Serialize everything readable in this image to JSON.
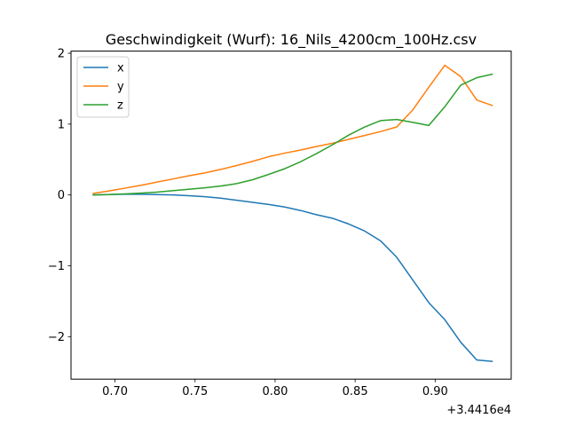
{
  "chart_data": {
    "type": "line",
    "title": "Geschwindigkeit (Wurf): 16_Nils_4200cm_100Hz.csv",
    "xlabel": "",
    "ylabel": "",
    "x_offset_label": "+3.4416e4",
    "xlim": [
      0.6725,
      0.9475
    ],
    "ylim": [
      -2.6,
      2.03
    ],
    "grid": false,
    "legend_position": "top-left",
    "x_ticks": [
      0.7,
      0.75,
      0.8,
      0.85,
      0.9
    ],
    "x_tick_labels": [
      "0.70",
      "0.75",
      "0.80",
      "0.85",
      "0.90"
    ],
    "y_ticks": [
      -2,
      -1,
      0,
      1,
      2
    ],
    "y_tick_labels": [
      "−2",
      "−1",
      "0",
      "1",
      "2"
    ],
    "x": [
      0.686,
      0.696,
      0.706,
      0.716,
      0.726,
      0.736,
      0.746,
      0.756,
      0.766,
      0.776,
      0.786,
      0.796,
      0.806,
      0.816,
      0.826,
      0.836,
      0.846,
      0.856,
      0.866,
      0.876,
      0.886,
      0.896,
      0.906,
      0.916,
      0.926,
      0.936
    ],
    "series": [
      {
        "name": "x",
        "color": "#1f77b4",
        "values": [
          0.0,
          0.005,
          0.01,
          0.01,
          0.005,
          0.0,
          -0.01,
          -0.025,
          -0.045,
          -0.075,
          -0.105,
          -0.135,
          -0.17,
          -0.22,
          -0.28,
          -0.33,
          -0.41,
          -0.51,
          -0.65,
          -0.88,
          -1.2,
          -1.52,
          -1.76,
          -2.08,
          -2.33,
          -2.35
        ]
      },
      {
        "name": "y",
        "color": "#ff7f0e",
        "values": [
          0.02,
          0.055,
          0.095,
          0.135,
          0.18,
          0.225,
          0.27,
          0.31,
          0.36,
          0.415,
          0.475,
          0.54,
          0.59,
          0.635,
          0.685,
          0.73,
          0.785,
          0.84,
          0.895,
          0.96,
          1.2,
          1.52,
          1.83,
          1.67,
          1.34,
          1.26
        ]
      },
      {
        "name": "z",
        "color": "#2ca02c",
        "values": [
          0.0,
          0.005,
          0.015,
          0.025,
          0.04,
          0.06,
          0.08,
          0.1,
          0.125,
          0.16,
          0.215,
          0.29,
          0.37,
          0.47,
          0.585,
          0.71,
          0.845,
          0.96,
          1.05,
          1.065,
          1.025,
          0.98,
          1.245,
          1.55,
          1.655,
          1.705
        ]
      }
    ]
  }
}
